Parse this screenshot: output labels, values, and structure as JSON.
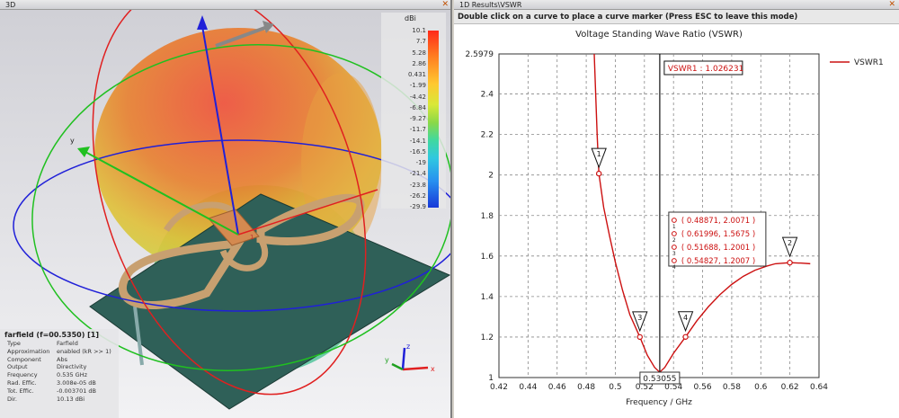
{
  "pane3d": {
    "title": "3D",
    "close": "✕",
    "legend": {
      "unit": "dBi",
      "ticks": [
        "10.1",
        "7.7",
        "5.28",
        "2.86",
        "0.431",
        "-1.99",
        "-4.42",
        "-6.84",
        "-9.27",
        "-11.7",
        "-14.1",
        "-16.5",
        "-19",
        "-21.4",
        "-23.8",
        "-26.2",
        "-29.9"
      ]
    },
    "axes": {
      "x": "x",
      "y": "y",
      "z": "z"
    },
    "port_label": "1",
    "info": {
      "title": "farfield (f=00.5350) [1]",
      "rows": [
        {
          "k": "Type",
          "v": "Farfield"
        },
        {
          "k": "Approximation",
          "v": "enabled (kR >> 1)"
        },
        {
          "k": "Component",
          "v": "Abs"
        },
        {
          "k": "Output",
          "v": "Directivity"
        },
        {
          "k": "Frequency",
          "v": "0.535 GHz"
        },
        {
          "k": "Rad. Effic.",
          "v": "3.008e-05 dB"
        },
        {
          "k": "Tot. Effic.",
          "v": "-0.003701 dB"
        },
        {
          "k": "Dir.",
          "v": "10.13 dBi"
        }
      ]
    },
    "colors": {
      "pattern_top": "#e84a3a",
      "pattern_mid": "#d8d040",
      "ground": "#2f6058",
      "antenna": "#d4a060"
    }
  },
  "pane1d": {
    "title": "1D Results\\VSWR",
    "close": "✕",
    "hint": "Double click on a curve to place a curve marker (Press ESC to leave this mode)"
  },
  "chart_data": {
    "type": "line",
    "title": "Voltage Standing Wave Ratio (VSWR)",
    "xlabel": "Frequency / GHz",
    "ylabel": "",
    "xlim": [
      0.42,
      0.64
    ],
    "ylim": [
      1,
      2.5979
    ],
    "xticks": [
      "0.42",
      "0.44",
      "0.46",
      "0.48",
      "0.5",
      "0.52",
      "0.54",
      "0.56",
      "0.58",
      "0.6",
      "0.62",
      "0.64"
    ],
    "xtick_values": [
      0.42,
      0.44,
      0.46,
      0.48,
      0.5,
      0.52,
      0.54,
      0.56,
      0.58,
      0.6,
      0.62,
      0.64
    ],
    "yticks": [
      "1",
      "1.2",
      "1.4",
      "1.6",
      "1.8",
      "2",
      "2.2",
      "2.4",
      "2.5979"
    ],
    "ytick_values": [
      1,
      1.2,
      1.4,
      1.6,
      1.8,
      2,
      2.2,
      2.4,
      2.5979
    ],
    "grid": true,
    "legend": "top-right",
    "series": [
      {
        "name": "VSWR1",
        "color": "#cc1010",
        "x": [
          0.4855,
          0.4875,
          0.48871,
          0.492,
          0.496,
          0.5,
          0.505,
          0.51,
          0.51688,
          0.522,
          0.527,
          0.5305,
          0.534,
          0.54,
          0.54827,
          0.556,
          0.564,
          0.572,
          0.58,
          0.588,
          0.596,
          0.604,
          0.61,
          0.61996,
          0.628,
          0.634
        ],
        "y": [
          2.5979,
          2.2,
          2.0071,
          1.84,
          1.7,
          1.57,
          1.43,
          1.31,
          1.2001,
          1.11,
          1.05,
          1.026231,
          1.05,
          1.12,
          1.2007,
          1.28,
          1.35,
          1.41,
          1.46,
          1.5,
          1.53,
          1.55,
          1.562,
          1.5675,
          1.565,
          1.562
        ]
      }
    ],
    "marker_readout": "VSWR1 : 1.026231",
    "cursor_x": 0.53055,
    "cursor_label": "0.53055",
    "markers": [
      {
        "id": "1",
        "x": 0.48871,
        "y": 2.0071,
        "label": "( 0.48871, 2.0071 )"
      },
      {
        "id": "2",
        "x": 0.61996,
        "y": 1.5675,
        "label": "( 0.61996, 1.5675 )"
      },
      {
        "id": "3",
        "x": 0.51688,
        "y": 1.2001,
        "label": "( 0.51688, 1.2001 )"
      },
      {
        "id": "4",
        "x": 0.54827,
        "y": 1.2007,
        "label": "( 0.54827, 1.2007 )"
      }
    ]
  }
}
